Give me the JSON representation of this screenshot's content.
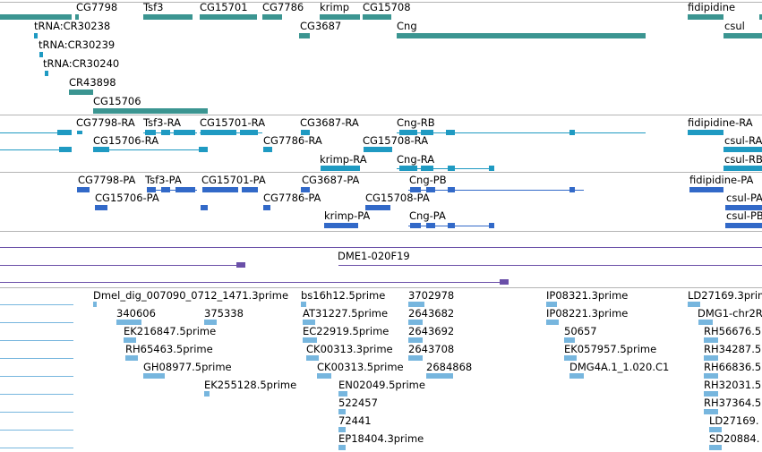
{
  "colors": {
    "gene": "#3b9591",
    "mrna": "#1f9ac2",
    "cds": "#3269c8",
    "clone": "#6a4fa8",
    "est": "#77b6de",
    "divider": "#b4b4b4",
    "background": "#ffffff",
    "text": "#000000"
  },
  "tracks": {
    "genes": {
      "labels": [
        "CG7798",
        "Tsf3",
        "CG15701",
        "CG7786",
        "krimp",
        "CG15708",
        "fidipidine",
        "tRNA:CR30238",
        "CG3687",
        "Cng",
        "csul",
        "tRNA:CR30239",
        "tRNA:CR30240",
        "CR43898",
        "CG15706"
      ]
    },
    "transcripts": {
      "labels": [
        "CG7798-RA",
        "Tsf3-RA",
        "CG15701-RA",
        "CG3687-RA",
        "Cng-RB",
        "fidipidine-RA",
        "CG15706-RA",
        "CG7786-RA",
        "CG15708-RA",
        "csul-RA",
        "krimp-RA",
        "Cng-RA",
        "csul-RB"
      ]
    },
    "proteins": {
      "labels": [
        "CG7798-PA",
        "Tsf3-PA",
        "CG15701-PA",
        "CG3687-PA",
        "Cng-PB",
        "fidipidine-PA",
        "CG15706-PA",
        "CG7786-PA",
        "CG15708-PA",
        "csul-PA",
        "krimp-PA",
        "Cng-PA",
        "csul-PB"
      ]
    },
    "clones": {
      "labels": [
        "DME1-020F19"
      ]
    },
    "ests": {
      "labels": [
        "Dmel_dig_007090_0712_1471.3prime",
        "bs16h12.5prime",
        "3702978",
        "IP08321.3prime",
        "LD27169.3prime",
        "340606",
        "375338",
        "AT31227.5prime",
        "2643682",
        "IP08221.3prime",
        "DMG1-chr2R",
        "EK216847.5prime",
        "EC22919.5prime",
        "2643692",
        "50657",
        "RH56676.5",
        "RH65463.5prime",
        "CK00313.3prime",
        "2643708",
        "EK057957.5prime",
        "RH34287.5",
        "GH08977.5prime",
        "CK00313.5prime",
        "2684868",
        "DMG4A.1_1.020.C1",
        "RH66836.5",
        "EK255128.5prime",
        "EN02049.5prime",
        "RH32031.5",
        "522457",
        "RH37364.5",
        "72441",
        "LD27169.",
        "EP18404.3prime",
        "SD20884."
      ]
    }
  }
}
